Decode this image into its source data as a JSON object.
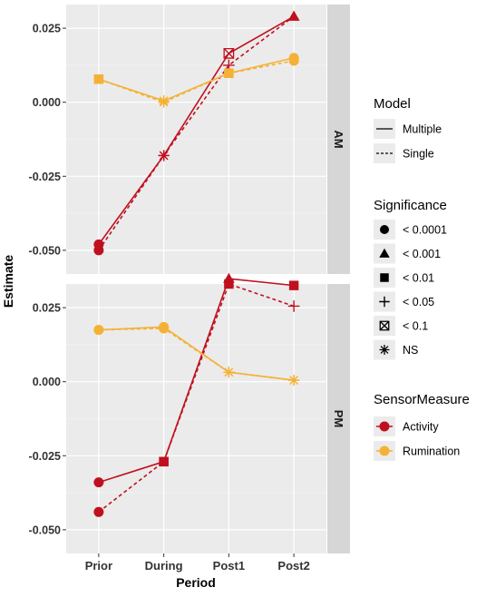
{
  "chart_data": {
    "type": "line",
    "xlabel": "Period",
    "ylabel": "Estimate",
    "categories": [
      "Prior",
      "During",
      "Post1",
      "Post2"
    ],
    "ylim": [
      -0.058,
      0.033
    ],
    "yticks": [
      {
        "value": -0.05,
        "label": "-0.050"
      },
      {
        "value": -0.025,
        "label": "-0.025"
      },
      {
        "value": 0.0,
        "label": "0.000"
      },
      {
        "value": 0.025,
        "label": "0.025"
      }
    ],
    "grid": true,
    "legend_position": "right",
    "colors": {
      "Activity": "#c0101f",
      "Rumination": "#f5b135"
    },
    "legends": {
      "model": {
        "title": "Model",
        "items": [
          {
            "key": "Multiple",
            "line": "solid"
          },
          {
            "key": "Single",
            "line": "dashed"
          }
        ]
      },
      "significance": {
        "title": "Significance",
        "items": [
          {
            "key": "< 0.0001",
            "shape": "circle"
          },
          {
            "key": "< 0.001",
            "shape": "triangle"
          },
          {
            "key": "< 0.01",
            "shape": "square"
          },
          {
            "key": "< 0.05",
            "shape": "plus"
          },
          {
            "key": "< 0.1",
            "shape": "boxx"
          },
          {
            "key": "NS",
            "shape": "asterisk"
          }
        ]
      },
      "sensor": {
        "title": "SensorMeasure",
        "items": [
          {
            "key": "Activity"
          },
          {
            "key": "Rumination"
          }
        ]
      }
    },
    "panels": [
      {
        "label": "AM",
        "series": [
          {
            "measure": "Activity",
            "model": "Multiple",
            "points": [
              {
                "x": "Prior",
                "y": -0.048,
                "shape": "circle"
              },
              {
                "x": "During",
                "y": -0.018,
                "shape": "asterisk"
              },
              {
                "x": "Post1",
                "y": 0.0165,
                "shape": "boxx"
              },
              {
                "x": "Post2",
                "y": 0.029,
                "shape": "triangle"
              }
            ]
          },
          {
            "measure": "Activity",
            "model": "Single",
            "points": [
              {
                "x": "Prior",
                "y": -0.05,
                "shape": "circle"
              },
              {
                "x": "During",
                "y": -0.018,
                "shape": "asterisk"
              },
              {
                "x": "Post1",
                "y": 0.0125,
                "shape": "plus"
              },
              {
                "x": "Post2",
                "y": 0.029,
                "shape": "triangle"
              }
            ]
          },
          {
            "measure": "Rumination",
            "model": "Multiple",
            "points": [
              {
                "x": "Prior",
                "y": 0.0078,
                "shape": "square"
              },
              {
                "x": "During",
                "y": 0.0005,
                "shape": "asterisk"
              },
              {
                "x": "Post1",
                "y": 0.0098,
                "shape": "square"
              },
              {
                "x": "Post2",
                "y": 0.015,
                "shape": "circle"
              }
            ]
          },
          {
            "measure": "Rumination",
            "model": "Single",
            "points": [
              {
                "x": "Prior",
                "y": 0.0078,
                "shape": "square"
              },
              {
                "x": "During",
                "y": 0.0,
                "shape": "asterisk"
              },
              {
                "x": "Post1",
                "y": 0.0098,
                "shape": "square"
              },
              {
                "x": "Post2",
                "y": 0.014,
                "shape": "circle"
              }
            ]
          }
        ]
      },
      {
        "label": "PM",
        "series": [
          {
            "measure": "Activity",
            "model": "Multiple",
            "points": [
              {
                "x": "Prior",
                "y": -0.034,
                "shape": "circle"
              },
              {
                "x": "During",
                "y": -0.027,
                "shape": "square"
              },
              {
                "x": "Post1",
                "y": 0.0348,
                "shape": "triangle"
              },
              {
                "x": "Post2",
                "y": 0.0325,
                "shape": "square"
              }
            ]
          },
          {
            "measure": "Activity",
            "model": "Single",
            "points": [
              {
                "x": "Prior",
                "y": -0.044,
                "shape": "circle"
              },
              {
                "x": "During",
                "y": -0.027,
                "shape": "square"
              },
              {
                "x": "Post1",
                "y": 0.033,
                "shape": "square"
              },
              {
                "x": "Post2",
                "y": 0.0255,
                "shape": "plus"
              }
            ]
          },
          {
            "measure": "Rumination",
            "model": "Multiple",
            "points": [
              {
                "x": "Prior",
                "y": 0.0175,
                "shape": "circle"
              },
              {
                "x": "During",
                "y": 0.0185,
                "shape": "circle"
              },
              {
                "x": "Post1",
                "y": 0.0032,
                "shape": "asterisk"
              },
              {
                "x": "Post2",
                "y": 0.0005,
                "shape": "asterisk"
              }
            ]
          },
          {
            "measure": "Rumination",
            "model": "Single",
            "points": [
              {
                "x": "Prior",
                "y": 0.0175,
                "shape": "circle"
              },
              {
                "x": "During",
                "y": 0.018,
                "shape": "circle"
              },
              {
                "x": "Post1",
                "y": 0.0032,
                "shape": "asterisk"
              },
              {
                "x": "Post2",
                "y": 0.0005,
                "shape": "asterisk"
              }
            ]
          }
        ]
      }
    ]
  }
}
